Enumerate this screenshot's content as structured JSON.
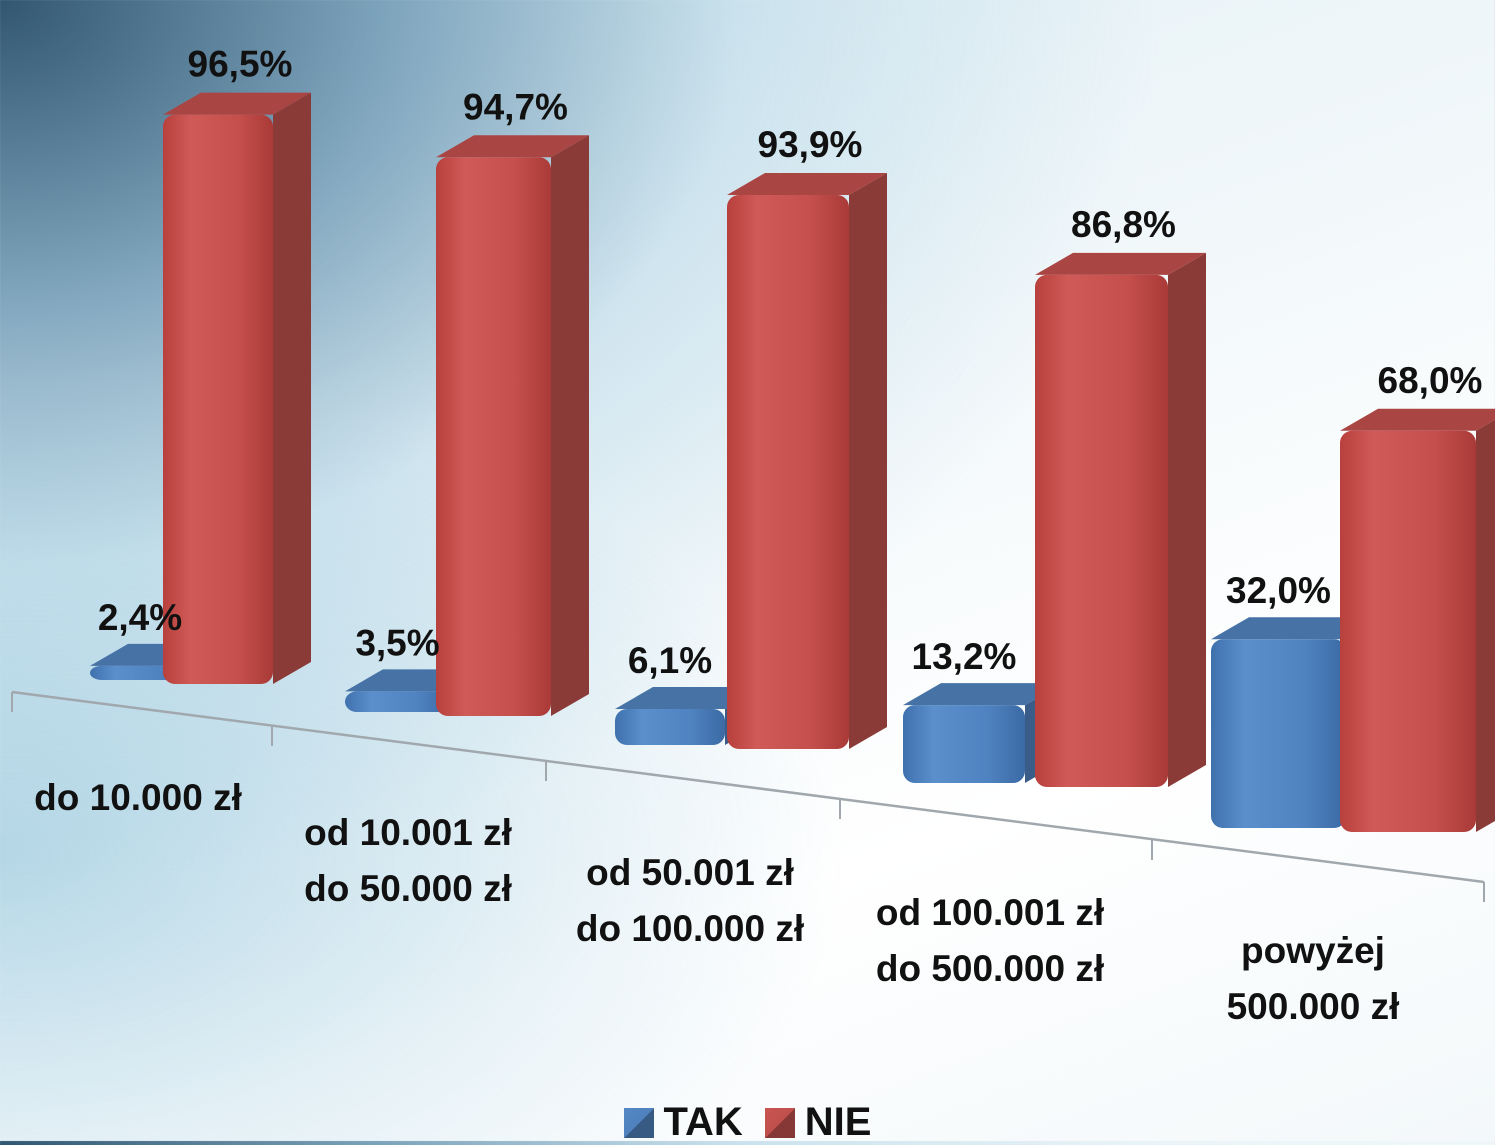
{
  "chart_data": {
    "type": "bar",
    "categories": [
      [
        "do 10.000 zł"
      ],
      [
        "od 10.001 zł",
        "do 50.000 zł"
      ],
      [
        "od 50.001 zł",
        "do 100.000 zł"
      ],
      [
        "od 100.001 zł",
        "do 500.000 zł"
      ],
      [
        "powyżej",
        "500.000 zł"
      ]
    ],
    "series": [
      {
        "name": "TAK",
        "color": "#4f81bd",
        "values": [
          2.4,
          3.5,
          6.1,
          13.2,
          32.0
        ],
        "labels": [
          "2,4%",
          "3,5%",
          "6,1%",
          "13,2%",
          "32,0%"
        ]
      },
      {
        "name": "NIE",
        "color": "#c0504d",
        "values": [
          96.5,
          94.7,
          93.9,
          86.8,
          68.0
        ],
        "labels": [
          "96,5%",
          "94,7%",
          "93,9%",
          "86,8%",
          "68,0%"
        ]
      }
    ],
    "ylim": [
      0,
      100
    ],
    "grid": false,
    "legend_position": "bottom",
    "style": "3d-perspective"
  },
  "legend": [
    {
      "name": "TAK",
      "color": "#4f81bd"
    },
    {
      "name": "NIE",
      "color": "#c0504d"
    }
  ]
}
